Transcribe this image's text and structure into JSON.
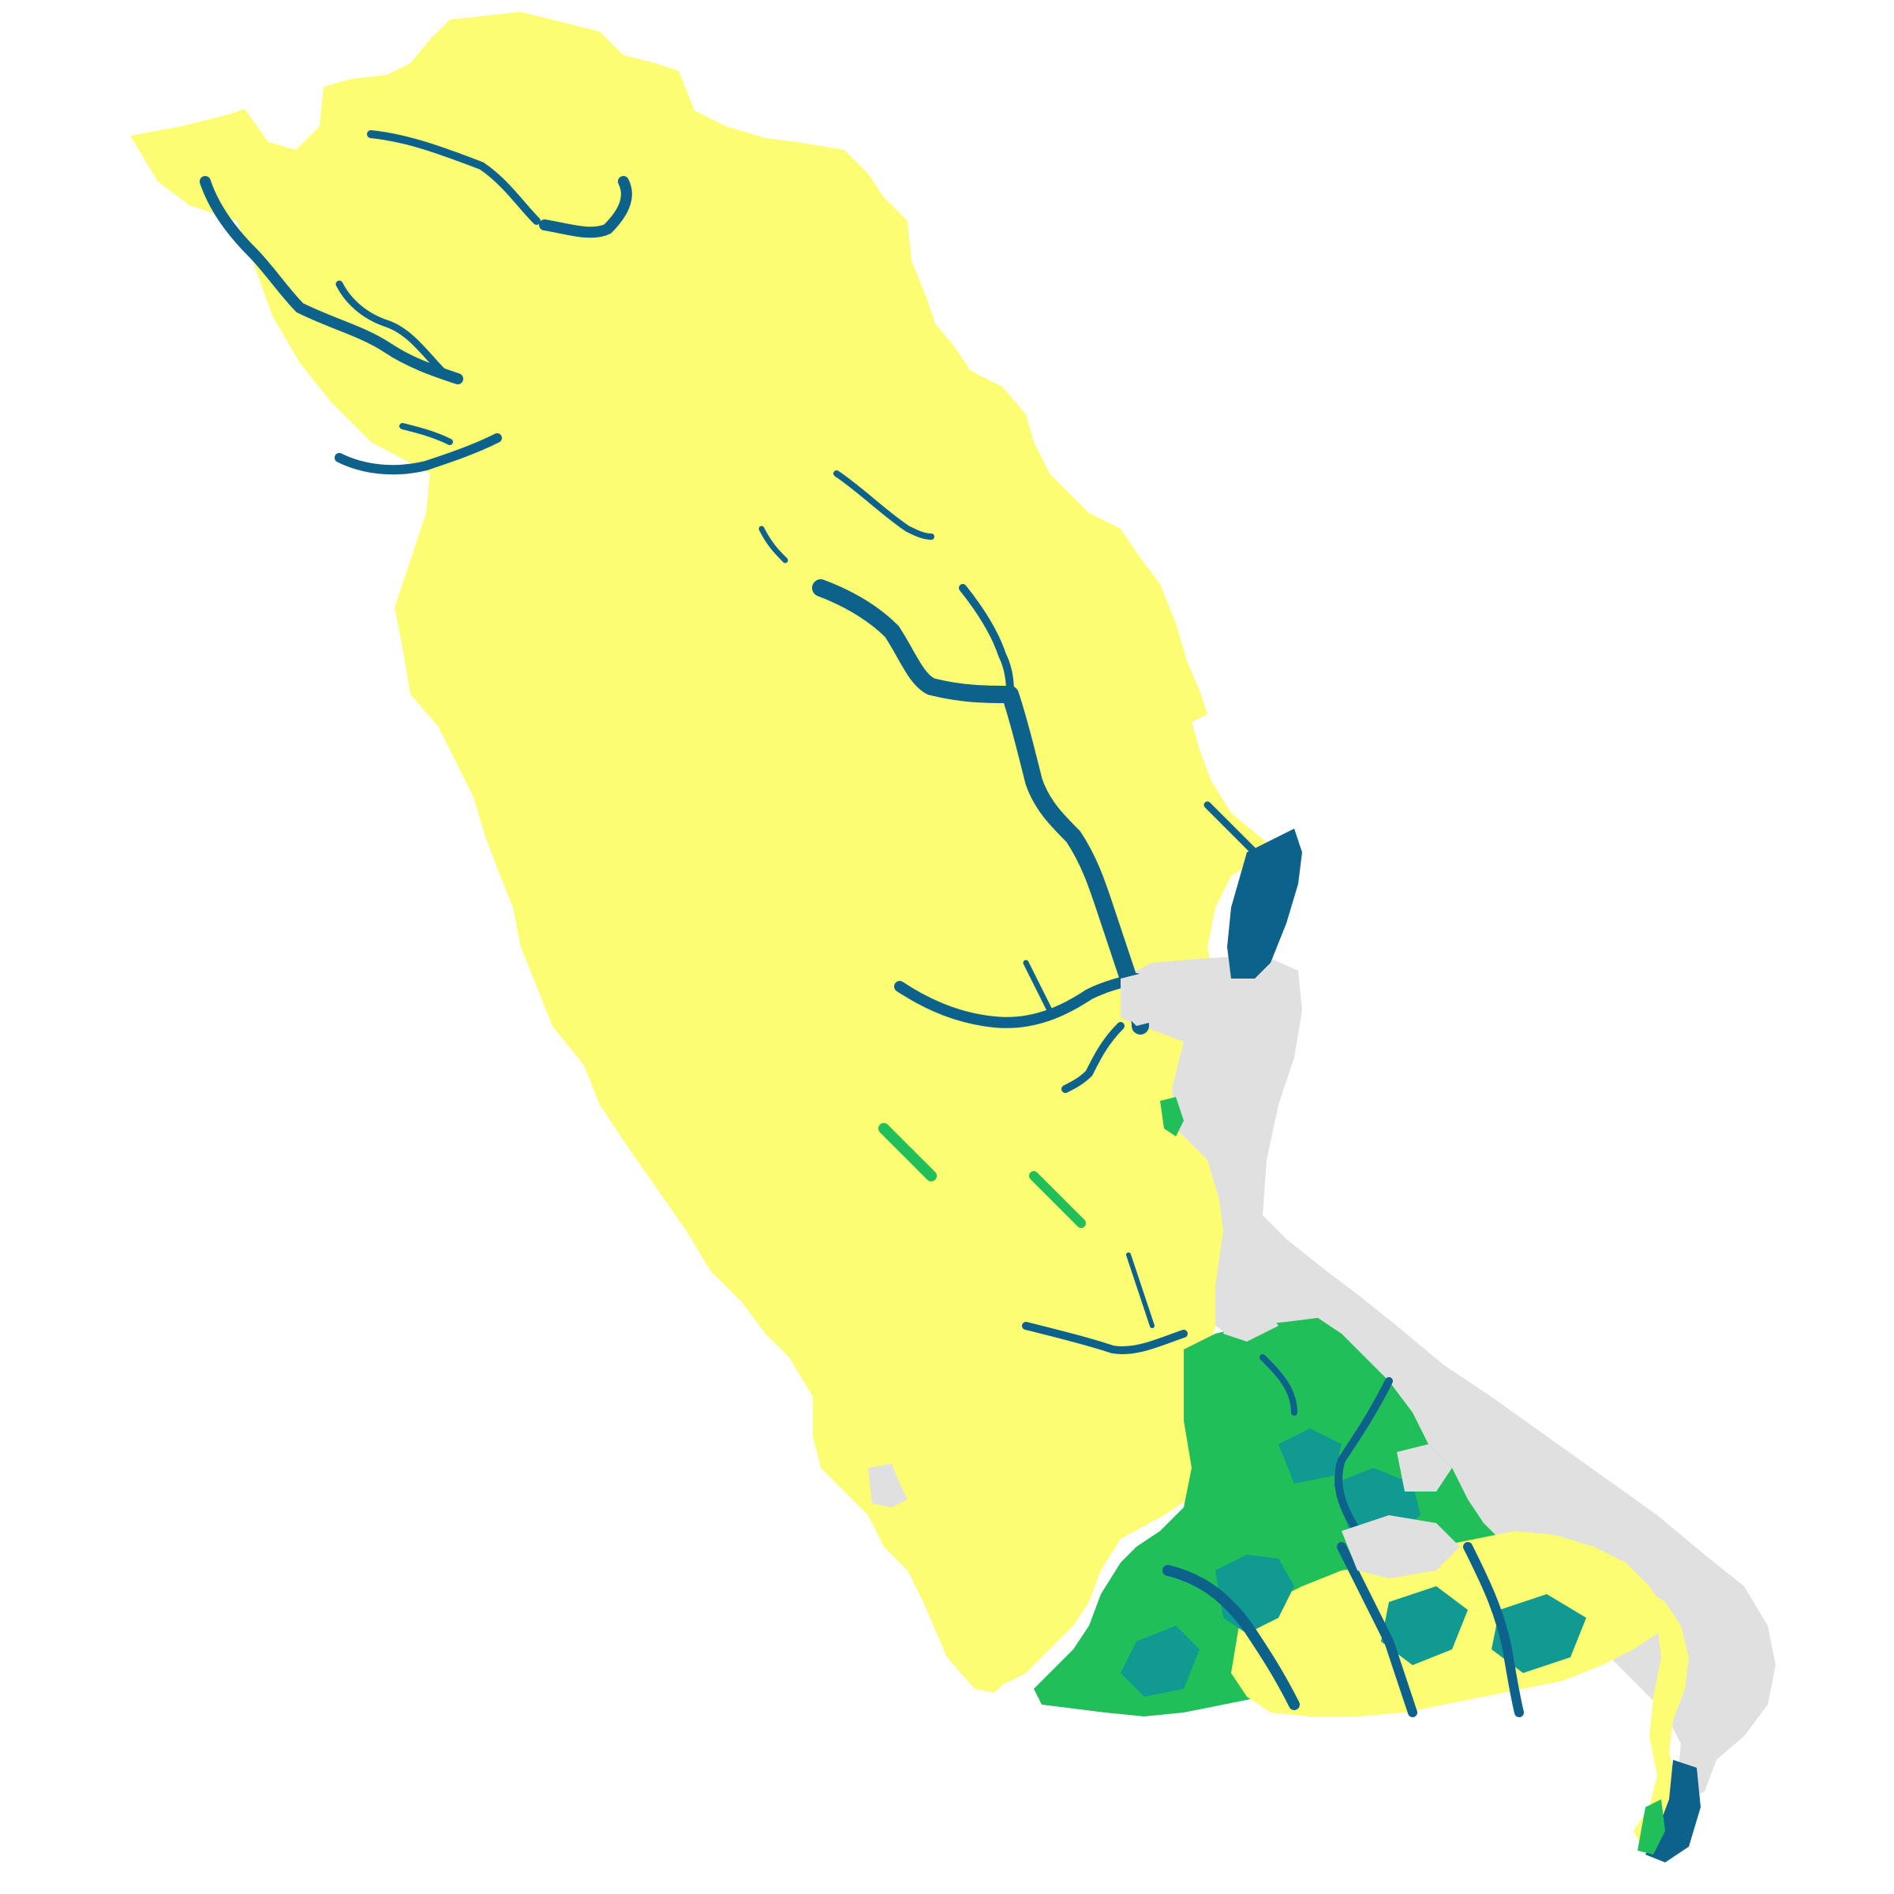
{
  "map": {
    "type": "choropleth-region",
    "legend": "none",
    "labels": "none",
    "background_color": "#ffffff",
    "classes": [
      {
        "id": "class-upland",
        "color": "#fdfd74"
      },
      {
        "id": "class-water",
        "color": "#0d628c"
      },
      {
        "id": "class-marsh-green",
        "color": "#21bf5a"
      },
      {
        "id": "class-teal",
        "color": "#119a91"
      },
      {
        "id": "class-open-water-gray",
        "color": "#e0e0e0"
      }
    ]
  }
}
